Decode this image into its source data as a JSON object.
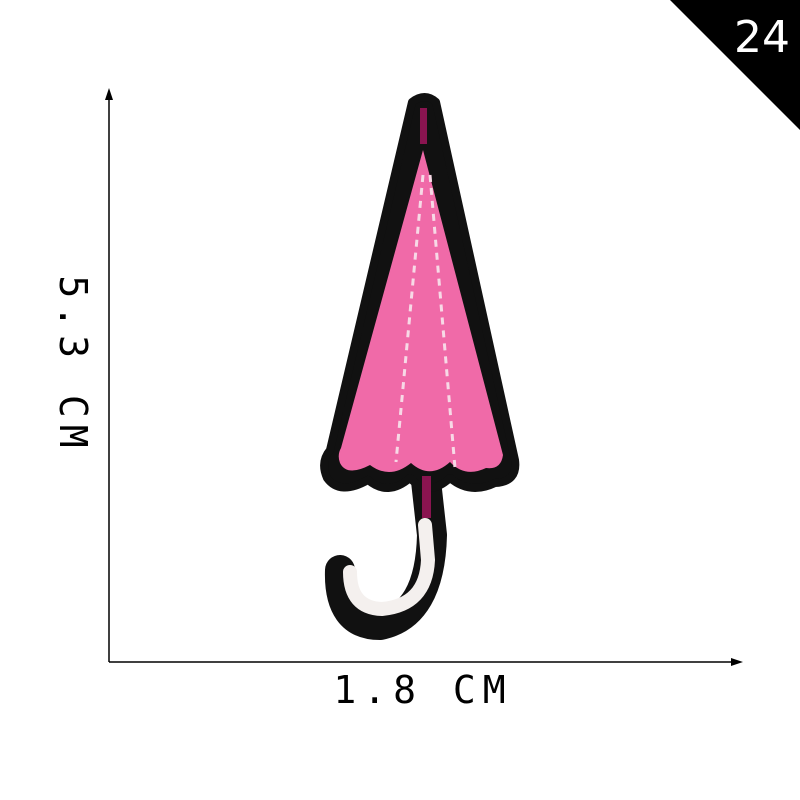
{
  "badge": {
    "number": "24"
  },
  "dimensions": {
    "height_label": "5.3 CM",
    "width_label": "1.8 CM"
  },
  "colors": {
    "canopy": "#f06aa8",
    "outline": "#111111",
    "stitch": "#f7d9e6",
    "shaft": "#8a1450",
    "handle": "#f4f0ee"
  },
  "subject": {
    "icon": "closed-pink-umbrella-embroidered-patch"
  }
}
